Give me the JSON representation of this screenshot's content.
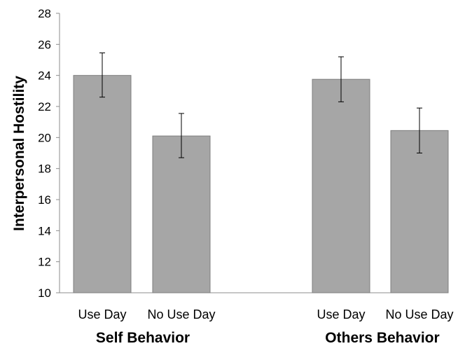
{
  "chart_data": {
    "type": "bar",
    "ylabel": "Interpersonal Hostility",
    "ylim": [
      10,
      28
    ],
    "yticks": [
      10,
      12,
      14,
      16,
      18,
      20,
      22,
      24,
      26,
      28
    ],
    "grid": false,
    "bar_color": "#a6a6a6",
    "bar_edge_color": "#7f7f7f",
    "errorbar_color": "#000000",
    "groups": [
      {
        "name": "Self Behavior",
        "bars": [
          {
            "label": "Use Day",
            "value": 24.0,
            "error_low": 22.6,
            "error_high": 25.45
          },
          {
            "label": "No Use Day",
            "value": 20.1,
            "error_low": 18.7,
            "error_high": 21.55
          }
        ]
      },
      {
        "name": "Others Behavior",
        "bars": [
          {
            "label": "Use Day",
            "value": 23.75,
            "error_low": 22.3,
            "error_high": 25.2
          },
          {
            "label": "No Use Day",
            "value": 20.45,
            "error_low": 19.0,
            "error_high": 21.9
          }
        ]
      }
    ]
  }
}
